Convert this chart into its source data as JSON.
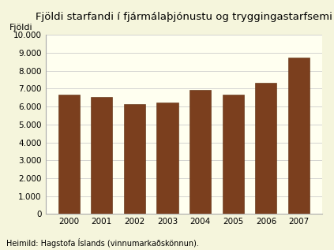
{
  "title": "Fjöldi starfandi í fjármálaþjónustu og tryggingastarfsemi",
  "ylabel": "Fjöldi",
  "categories": [
    "2000",
    "2001",
    "2002",
    "2003",
    "2004",
    "2005",
    "2006",
    "2007"
  ],
  "values": [
    6650,
    6550,
    6150,
    6250,
    6950,
    6650,
    7350,
    8750
  ],
  "bar_color": "#7B3F1E",
  "background_color": "#F5F5DC",
  "plot_bg_color": "#FFFFF0",
  "ylim": [
    0,
    10000
  ],
  "yticks": [
    0,
    1000,
    2000,
    3000,
    4000,
    5000,
    6000,
    7000,
    8000,
    9000,
    10000
  ],
  "ytick_labels": [
    "0",
    "1.000",
    "2.000",
    "3.000",
    "4.000",
    "5.000",
    "6.000",
    "7.000",
    "8.000",
    "9.000",
    "10.000"
  ],
  "footnote": "Heimild: Hagstofa Íslands (vinnumarkaðskönnun).",
  "title_fontsize": 9.5,
  "label_fontsize": 8,
  "tick_fontsize": 7.5,
  "footnote_fontsize": 7,
  "grid_color": "#cccccc",
  "bar_edge_color": "#5a2a0a"
}
